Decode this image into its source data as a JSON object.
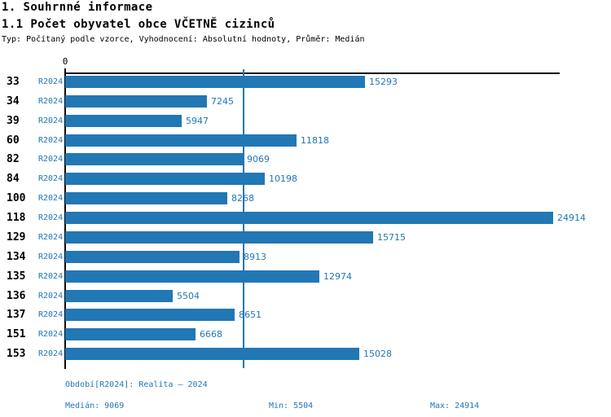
{
  "header": {
    "title1": "1. Souhrnné informace",
    "title2": "1.1 Počet obyvatel obce VČETNĚ cizinců",
    "subtitle": "Typ: Počítaný podle vzorce, Vyhodnocení: Absolutní hodnoty, Průměr: Medián"
  },
  "chart_data": {
    "type": "bar",
    "orientation": "horizontal",
    "categories": [
      "33",
      "34",
      "39",
      "60",
      "82",
      "84",
      "100",
      "118",
      "129",
      "134",
      "135",
      "136",
      "137",
      "151",
      "153"
    ],
    "series": [
      {
        "name": "R2024",
        "values": [
          15293,
          7245,
          5947,
          11818,
          9069,
          10198,
          8268,
          24914,
          15715,
          8913,
          12974,
          5504,
          8651,
          6668,
          15028
        ]
      }
    ],
    "value_labels_shown": true,
    "xlim": [
      0,
      25200
    ],
    "zero_tick_label": "0",
    "median_line_value": 9069,
    "grid": false,
    "legend_position": "none",
    "colors": {
      "bar": "#2277B5",
      "blue_text": "#2277B5",
      "axis": "#000000"
    }
  },
  "footer": {
    "period": "Období[R2024]: Realita – 2024",
    "median": "Medián: 9069",
    "min": "Min: 5504",
    "max": "Max: 24914"
  }
}
